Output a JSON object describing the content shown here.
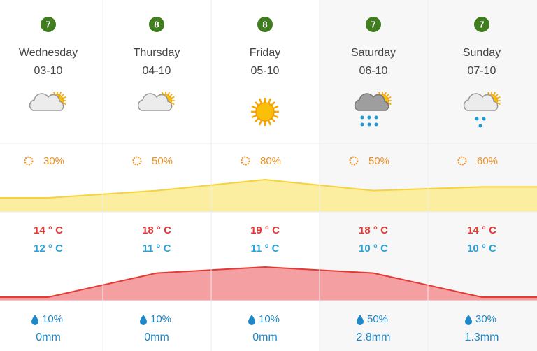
{
  "days": [
    {
      "badge": "7",
      "name": "Wednesday",
      "date": "03-10",
      "sun": {
        "value": 30,
        "label": "30%"
      },
      "high": {
        "value": 14,
        "label": "14 ° C"
      },
      "low": {
        "value": 12,
        "label": "12 ° C"
      },
      "rain": "10%",
      "amount": "0mm"
    },
    {
      "badge": "8",
      "name": "Thursday",
      "date": "04-10",
      "sun": {
        "value": 50,
        "label": "50%"
      },
      "high": {
        "value": 18,
        "label": "18 ° C"
      },
      "low": {
        "value": 11,
        "label": "11 ° C"
      },
      "rain": "10%",
      "amount": "0mm"
    },
    {
      "badge": "8",
      "name": "Friday",
      "date": "05-10",
      "sun": {
        "value": 80,
        "label": "80%"
      },
      "high": {
        "value": 19,
        "label": "19 ° C"
      },
      "low": {
        "value": 11,
        "label": "11 ° C"
      },
      "rain": "10%",
      "amount": "0mm"
    },
    {
      "badge": "7",
      "name": "Saturday",
      "date": "06-10",
      "sun": {
        "value": 50,
        "label": "50%"
      },
      "high": {
        "value": 18,
        "label": "18 ° C"
      },
      "low": {
        "value": 10,
        "label": "10 ° C"
      },
      "rain": "50%",
      "amount": "2.8mm"
    },
    {
      "badge": "7",
      "name": "Sunday",
      "date": "07-10",
      "sun": {
        "value": 60,
        "label": "60%"
      },
      "high": {
        "value": 14,
        "label": "14 ° C"
      },
      "low": {
        "value": 10,
        "label": "10 ° C"
      },
      "rain": "30%",
      "amount": "1.3mm"
    }
  ]
}
